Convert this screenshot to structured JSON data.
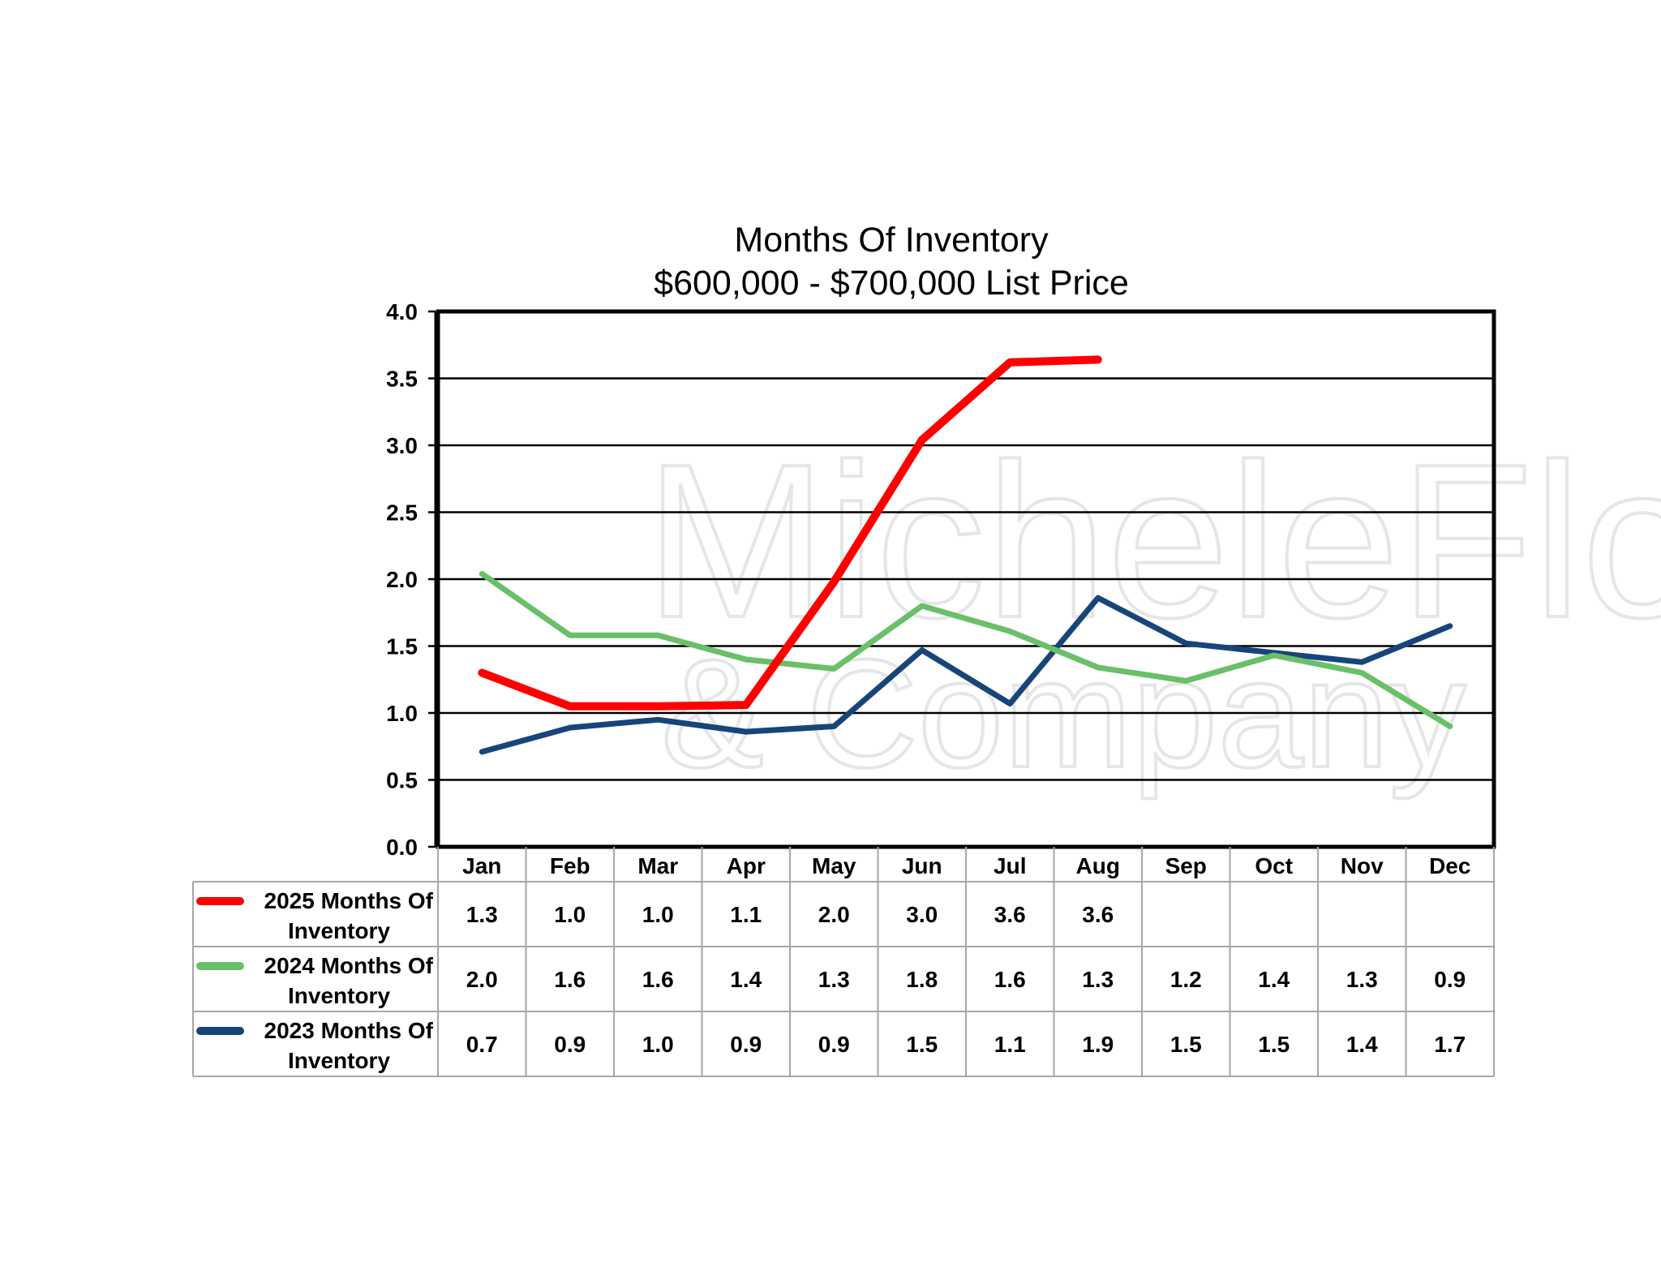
{
  "chart_data": {
    "type": "line",
    "title": "Months Of Inventory",
    "subtitle": "$600,000 - $700,000 List Price",
    "categories": [
      "Jan",
      "Feb",
      "Mar",
      "Apr",
      "May",
      "Jun",
      "Jul",
      "Aug",
      "Sep",
      "Oct",
      "Nov",
      "Dec"
    ],
    "ylim": [
      0,
      4
    ],
    "yticks": [
      "0.0",
      "0.5",
      "1.0",
      "1.5",
      "2.0",
      "2.5",
      "3.0",
      "3.5",
      "4.0"
    ],
    "grid": true,
    "legend_position": "data-table-left",
    "series": [
      {
        "name": "2025 Months Of Inventory",
        "legend_line1": "2025 Months Of",
        "legend_line2": "Inventory",
        "color": "#ff0000",
        "values": [
          1.3,
          1.05,
          1.05,
          1.06,
          1.98,
          3.04,
          3.62,
          3.64,
          null,
          null,
          null,
          null
        ],
        "table_values": [
          "1.3",
          "1.0",
          "1.0",
          "1.1",
          "2.0",
          "3.0",
          "3.6",
          "3.6",
          "",
          "",
          "",
          ""
        ]
      },
      {
        "name": "2024 Months Of Inventory",
        "legend_line1": "2024 Months Of",
        "legend_line2": "Inventory",
        "color": "#6abf69",
        "values": [
          2.04,
          1.58,
          1.58,
          1.4,
          1.33,
          1.8,
          1.61,
          1.34,
          1.24,
          1.43,
          1.3,
          0.9
        ],
        "table_values": [
          "2.0",
          "1.6",
          "1.6",
          "1.4",
          "1.3",
          "1.8",
          "1.6",
          "1.3",
          "1.2",
          "1.4",
          "1.3",
          "0.9"
        ]
      },
      {
        "name": "2023 Months Of Inventory",
        "legend_line1": "2023 Months Of",
        "legend_line2": "Inventory",
        "color": "#17457a",
        "values": [
          0.71,
          0.89,
          0.95,
          0.86,
          0.9,
          1.47,
          1.07,
          1.86,
          1.52,
          1.45,
          1.38,
          1.65
        ],
        "table_values": [
          "0.7",
          "0.9",
          "1.0",
          "0.9",
          "0.9",
          "1.5",
          "1.1",
          "1.9",
          "1.5",
          "1.5",
          "1.4",
          "1.7"
        ]
      }
    ]
  },
  "watermark": {
    "line1": "MicheleFlory",
    "line2": "& Company"
  }
}
